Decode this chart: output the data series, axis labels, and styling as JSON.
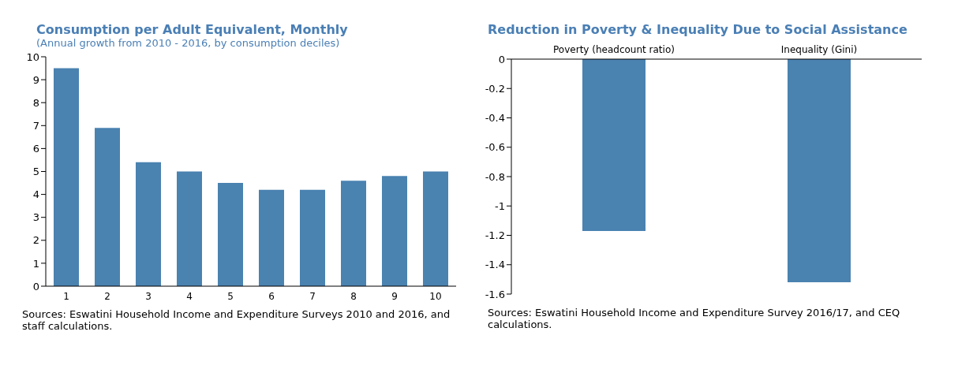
{
  "chart_data": [
    {
      "type": "bar",
      "title": "Consumption per Adult Equivalent, Monthly",
      "subtitle": "(Annual growth from 2010 - 2016, by consumption deciles)",
      "categories": [
        "1",
        "2",
        "3",
        "4",
        "5",
        "6",
        "7",
        "8",
        "9",
        "10"
      ],
      "values": [
        9.5,
        6.9,
        5.4,
        5.0,
        4.5,
        4.2,
        4.2,
        4.6,
        4.8,
        5.0
      ],
      "color": "#4a82b0",
      "ylim": [
        0,
        10
      ],
      "yticks": [
        0,
        1,
        2,
        3,
        4,
        5,
        6,
        7,
        8,
        9,
        10
      ],
      "grid": false,
      "annotations": [
        "Sources: Eswatini Household Income and Expenditure Surveys 2010 and 2016, and staff calculations."
      ]
    },
    {
      "type": "bar",
      "title": "Reduction in Poverty & Inequality Due to Social Assistance",
      "categories": [
        "Poverty (headcount ratio)",
        "Inequality (Gini)"
      ],
      "values": [
        -1.17,
        -1.52
      ],
      "color": "#4a82b0",
      "ylim": [
        -1.6,
        0
      ],
      "yticks": [
        -1.6,
        -1.4,
        -1.2,
        -1,
        -0.8,
        -0.6,
        -0.4,
        -0.2,
        0
      ],
      "grid": false,
      "annotations": [
        "Sources: Eswatini Household Income and Expenditure Survey 2016/17, and CEQ calculations."
      ]
    }
  ]
}
